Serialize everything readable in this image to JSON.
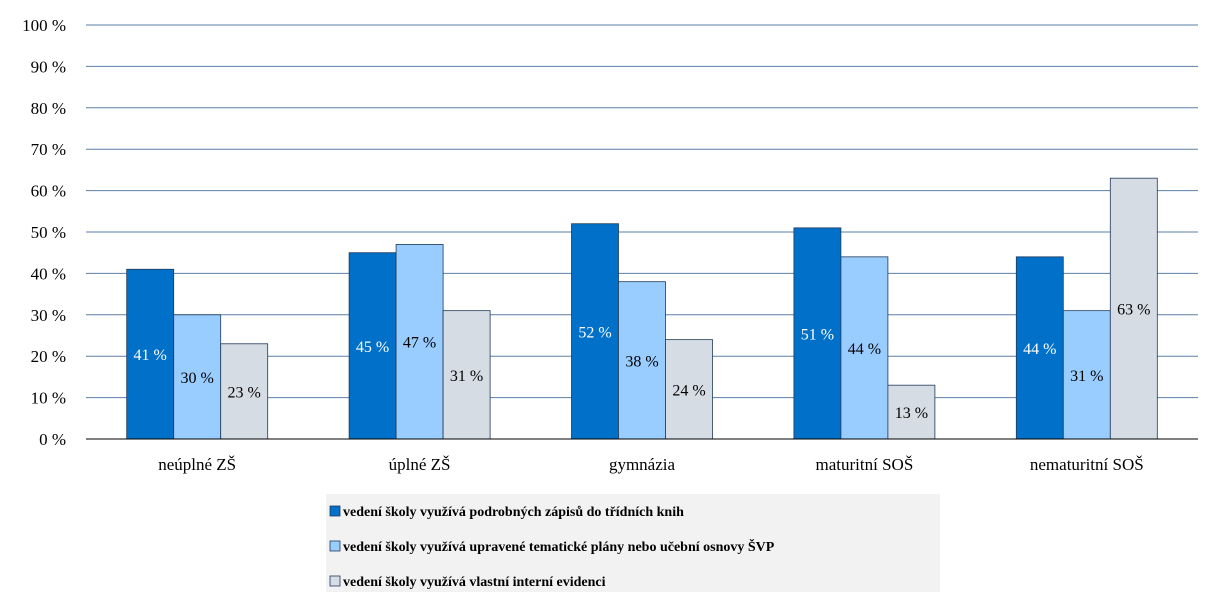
{
  "chart_data": {
    "type": "bar",
    "categories": [
      "neúplné ZŠ",
      "úplné ZŠ",
      "gymnázia",
      "maturitní SOŠ",
      "nematuritní SOŠ"
    ],
    "series": [
      {
        "name": "vedení školy využívá podrobných zápisů do třídních knih",
        "values": [
          41,
          45,
          52,
          51,
          44
        ],
        "labels": [
          "41 %",
          "45 %",
          "52 %",
          "51 %",
          "44 %"
        ],
        "color": "#0070C8"
      },
      {
        "name": "vedení školy využívá upravené tematické plány nebo učební osnovy ŠVP",
        "values": [
          30,
          47,
          38,
          44,
          31
        ],
        "labels": [
          "30 %",
          "47 %",
          "38 %",
          "44 %",
          "31 %"
        ],
        "color": "#99CCFF"
      },
      {
        "name": "vedení školy využívá vlastní interní evidenci",
        "values": [
          23,
          31,
          24,
          13,
          63
        ],
        "labels": [
          "23 %",
          "31 %",
          "24 %",
          "13 %",
          "63 %"
        ],
        "color": "#D5DCE4"
      }
    ],
    "ylim": [
      0,
      100
    ],
    "yticks": [
      "0 %",
      "10 %",
      "20 %",
      "30 %",
      "40 %",
      "50 %",
      "60 %",
      "70 %",
      "80 %",
      "90 %",
      "100 %"
    ],
    "grid": true,
    "legend_position": "bottom",
    "title": "",
    "xlabel": "",
    "ylabel": ""
  }
}
